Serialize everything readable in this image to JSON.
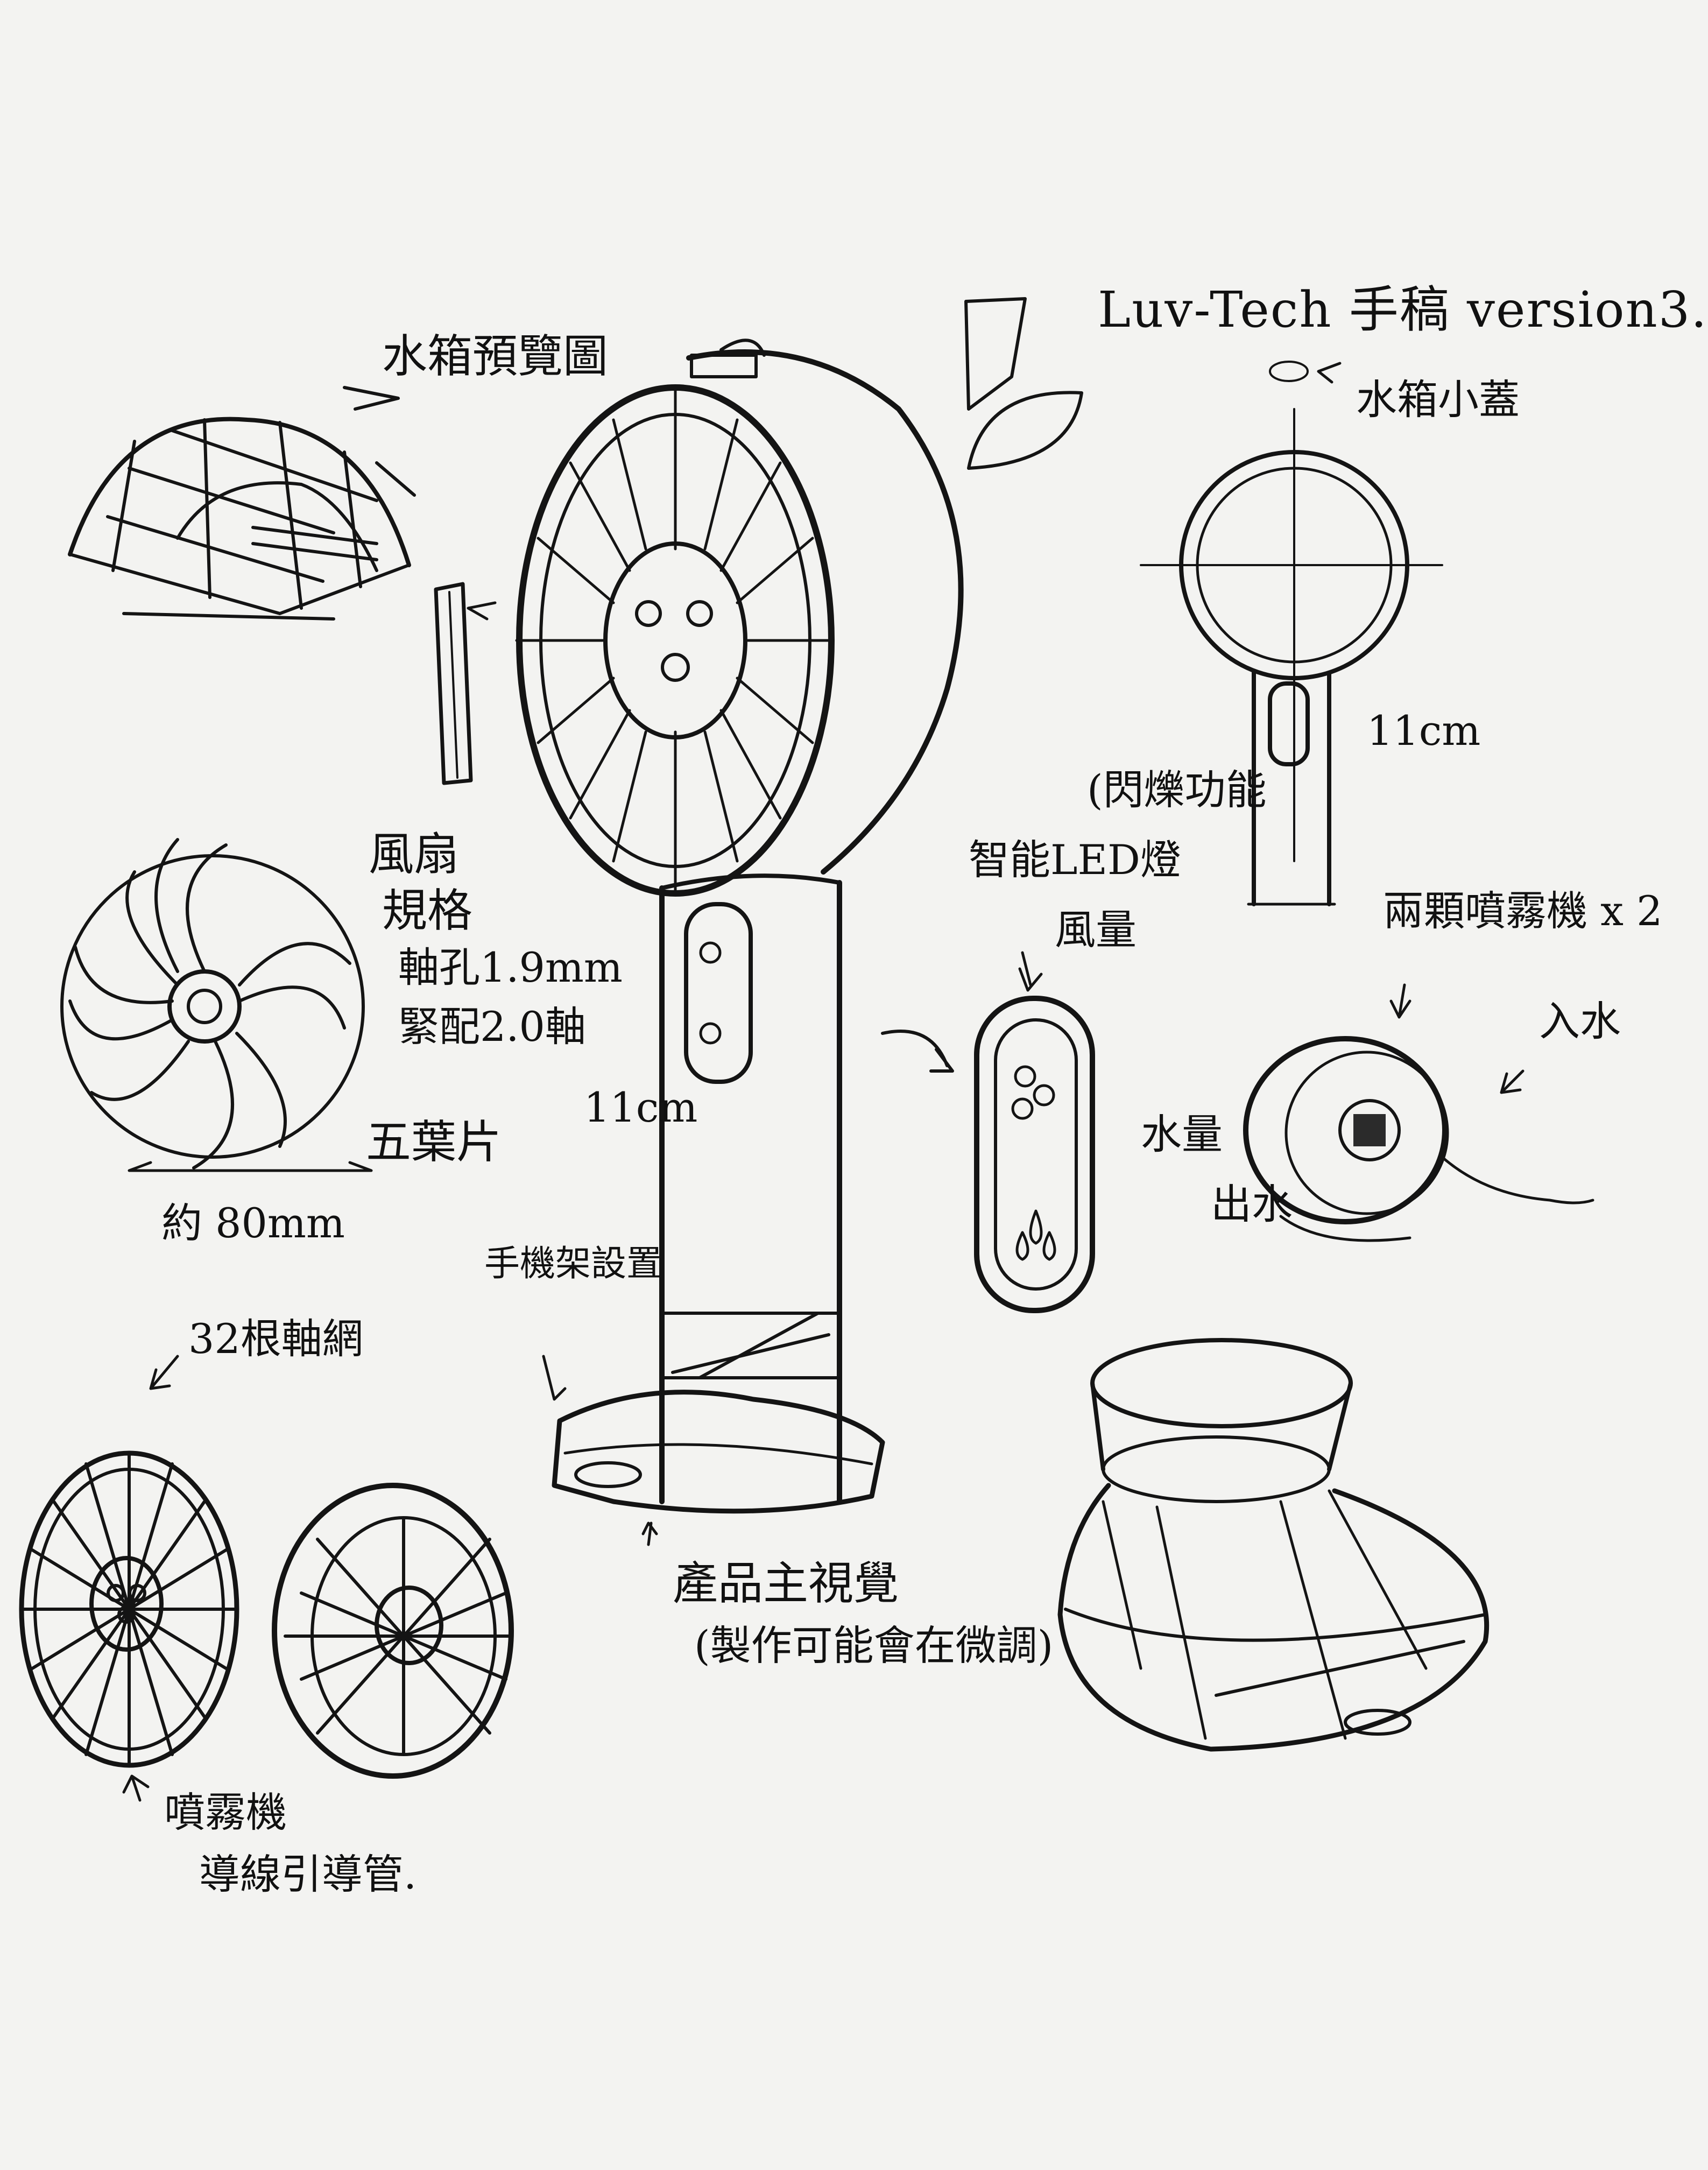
{
  "title": "Luv-Tech 手稿 version3.",
  "labels": {
    "tank_preview": "水箱預覽圖",
    "tank_cap": "水箱小蓋",
    "fan_blade": "風扇",
    "spec": "規格",
    "shaft_hole": "軸孔1.9mm",
    "fit_shaft": "緊配2.0軸",
    "five_blades": "五葉片",
    "approx_80mm": "約 80mm",
    "height_11cm_front": "11cm",
    "height_11cm_side": "11cm",
    "led_flash": "(閃爍功能",
    "smart_led": "智能LED燈",
    "wind_level": "風量",
    "water_level": "水量",
    "atomizer": "兩顆噴霧機 x 2",
    "water_in": "入水",
    "water_out": "出水",
    "phone_holder": "手機架設置",
    "grille_32": "32根軸網",
    "main_view": "產品主視覺",
    "may_adjust": "(製作可能會在微調)",
    "mist_guide_1": "噴霧機",
    "mist_guide_2": "導線引導管."
  }
}
